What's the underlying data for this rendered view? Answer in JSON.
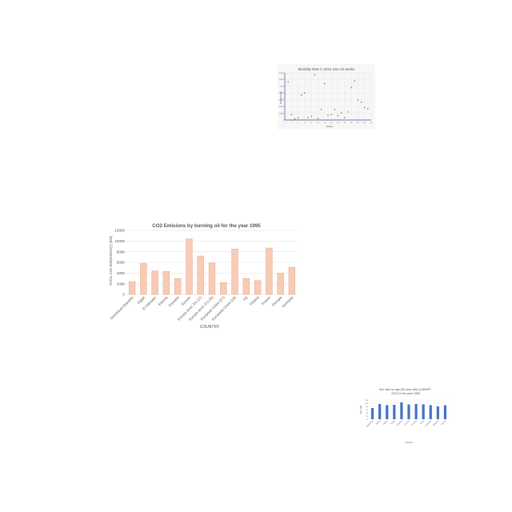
{
  "colors": {
    "scatter_point": "#6b8e23",
    "scatter_axis": "#6a3d9a",
    "bar_fill": "#f8cbb5",
    "bar_stroke": "#e8967a",
    "small_bar": "#4472c4",
    "grid": "#dddddd",
    "text": "#555555"
  },
  "chart_data": [
    {
      "type": "scatter",
      "title": "Mortality Rate in 2012 over 25 weeks",
      "xlabel": "Weeks",
      "ylabel": "Mortality Rate",
      "xlim": [
        0,
        26
      ],
      "ylim": [
        0,
        0.0014
      ],
      "xticks": [
        "0",
        "2",
        "4",
        "6",
        "8",
        "10",
        "12",
        "14",
        "16",
        "18",
        "20",
        "22",
        "24",
        "26"
      ],
      "yticks": [
        "0",
        "0.0002",
        "0.0004",
        "0.0006",
        "0.0008",
        "0.001",
        "0.0012",
        "0.0014"
      ],
      "x": [
        1,
        2,
        3,
        4,
        5,
        6,
        7,
        8,
        9,
        10,
        11,
        12,
        13,
        14,
        15,
        16,
        17,
        18,
        19,
        20,
        21,
        22,
        23,
        24,
        25
      ],
      "y": [
        0.00113,
        0.00016,
        3e-05,
        6e-05,
        0.00074,
        0.0008,
        7e-05,
        0.00011,
        0.00134,
        5e-05,
        0.00032,
        0.00108,
        0.00014,
        0.00016,
        0.00031,
        0.00013,
        0.00021,
        7e-05,
        0.00024,
        0.00096,
        0.00116,
        0.00059,
        0.00053,
        0.00037,
        0.00033
      ]
    },
    {
      "type": "bar",
      "title": "CO2 Emisions by burning oil for the year 1995",
      "xlabel": "COUNTRY",
      "ylabel": "TOTAL CO2 EMISSIONS(*) (000)",
      "ylim": [
        0,
        12000
      ],
      "yticks": [
        "0",
        "2000",
        "4000",
        "6000",
        "8000",
        "10000",
        "12000"
      ],
      "categories": [
        "Dominican Republic",
        "Egypt",
        "El Salvador",
        "Estonia",
        "Eswatini",
        "Europe",
        "Europe (excl. EU-27)",
        "Europe (excl. EU-28)",
        "European Union (27)",
        "European Union (28)",
        "Fiji",
        "Finland",
        "France",
        "Georgia",
        "Germany"
      ],
      "values": [
        2400,
        5800,
        4400,
        4300,
        3000,
        10400,
        7200,
        5900,
        2200,
        8500,
        3000,
        2600,
        8700,
        4000,
        5100
      ]
    },
    {
      "type": "bar",
      "title": "Sex ratio by age (60 year olds) (UNWPP, 2017) in the year 1950",
      "xlabel": "Country",
      "ylabel": "Sex ratio",
      "ylim": [
        0,
        120
      ],
      "yticks": [
        "0",
        "20",
        "40",
        "60",
        "80",
        "100",
        "120"
      ],
      "categories": [
        "Afghanistan",
        "Albania",
        "Algeria",
        "Angola",
        "Argentina",
        "Armenia",
        "Australia",
        "Austria",
        "Azerbaijan",
        "Bahamas",
        "Bahrain"
      ],
      "values": [
        70,
        95,
        88,
        90,
        105,
        92,
        95,
        93,
        88,
        80,
        87
      ]
    }
  ]
}
